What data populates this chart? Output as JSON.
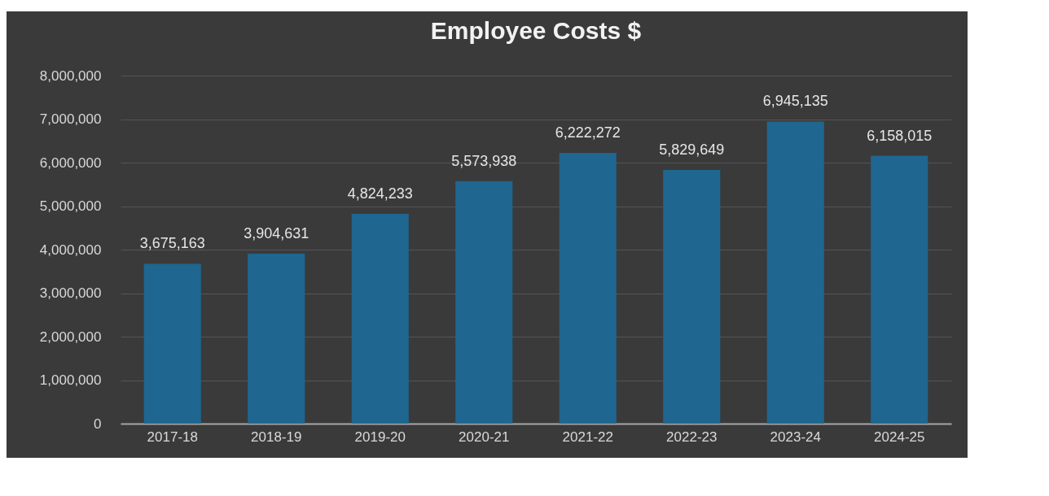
{
  "chart_data": {
    "type": "bar",
    "title": "Employee Costs $",
    "categories": [
      "2017-18",
      "2018-19",
      "2019-20",
      "2020-21",
      "2021-22",
      "2022-23",
      "2023-24",
      "2024-25"
    ],
    "values": [
      3675163,
      3904631,
      4824233,
      5573938,
      6222272,
      5829649,
      6945135,
      6158015
    ],
    "value_labels": [
      "3,675,163",
      "3,904,631",
      "4,824,233",
      "5,573,938",
      "6,222,272",
      "5,829,649",
      "6,945,135",
      "6,158,015"
    ],
    "color": "#1f6690",
    "ylim": [
      0,
      8000000
    ],
    "yticks": [
      0,
      {
        "value": 1000000,
        "label": "1,000,000"
      },
      {
        "value": 2000000,
        "label": "2,000,000"
      },
      {
        "value": 3000000,
        "label": "3,000,000"
      },
      {
        "value": 4000000,
        "label": "4,000,000"
      },
      {
        "value": 5000000,
        "label": "5,000,000"
      },
      {
        "value": 6000000,
        "label": "6,000,000"
      },
      {
        "value": 7000000,
        "label": "7,000,000"
      },
      {
        "value": 8000000,
        "label": "8,000,000"
      }
    ],
    "grid": "y"
  }
}
